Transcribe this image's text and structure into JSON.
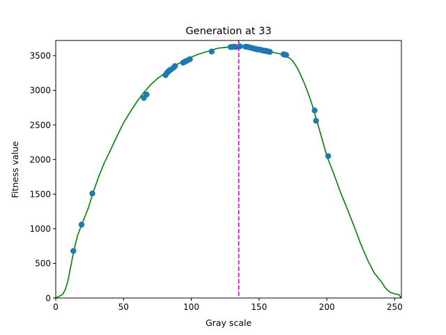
{
  "chart_data": {
    "type": "scatter",
    "title": "Generation at 33",
    "xlabel": "Gray scale",
    "ylabel": "Fitness value",
    "xlim": [
      0,
      255
    ],
    "ylim": [
      0,
      3720
    ],
    "xticks": [
      0,
      50,
      100,
      150,
      200,
      250
    ],
    "yticks": [
      0,
      500,
      1000,
      1500,
      2000,
      2500,
      3000,
      3500
    ],
    "grid": false,
    "legend": "none",
    "colors": {
      "curve": "#008000",
      "points": "#1f77b4",
      "marker_line": "#bf00bf"
    },
    "curve": {
      "x": [
        0,
        5,
        7,
        9,
        11,
        13,
        16,
        20,
        24,
        28,
        32,
        36,
        40,
        45,
        50,
        55,
        60,
        65,
        70,
        75,
        80,
        85,
        90,
        95,
        100,
        105,
        110,
        115,
        120,
        125,
        130,
        135,
        140,
        145,
        150,
        155,
        160,
        165,
        170,
        173,
        175,
        178,
        180,
        183,
        186,
        189,
        192,
        196,
        200,
        205,
        210,
        215,
        220,
        225,
        230,
        235,
        240,
        243,
        245,
        247,
        250,
        253,
        255
      ],
      "y": [
        0,
        50,
        120,
        250,
        450,
        650,
        900,
        1100,
        1300,
        1550,
        1770,
        1960,
        2120,
        2330,
        2530,
        2690,
        2840,
        2970,
        3080,
        3170,
        3240,
        3320,
        3380,
        3430,
        3480,
        3520,
        3550,
        3580,
        3610,
        3620,
        3630,
        3640,
        3630,
        3610,
        3590,
        3570,
        3550,
        3530,
        3490,
        3460,
        3420,
        3330,
        3250,
        3120,
        2970,
        2800,
        2600,
        2330,
        2050,
        1800,
        1530,
        1290,
        1040,
        780,
        550,
        360,
        240,
        150,
        110,
        80,
        60,
        50,
        0
      ]
    },
    "points": {
      "x": [
        13,
        19,
        27,
        65,
        67,
        81,
        82,
        83,
        84,
        85,
        87,
        88,
        94,
        95,
        96,
        98,
        99,
        115,
        129,
        130,
        131,
        132,
        133,
        136,
        140,
        141,
        142,
        143,
        144,
        145,
        146,
        147,
        148,
        149,
        150,
        151,
        152,
        153,
        154,
        155,
        156,
        157,
        158,
        168,
        169,
        170,
        191,
        192,
        201
      ],
      "y": [
        680,
        1060,
        1510,
        2890,
        2940,
        3220,
        3250,
        3270,
        3290,
        3300,
        3330,
        3350,
        3400,
        3410,
        3420,
        3440,
        3450,
        3560,
        3625,
        3625,
        3630,
        3630,
        3625,
        3635,
        3630,
        3630,
        3625,
        3620,
        3615,
        3610,
        3605,
        3600,
        3595,
        3590,
        3590,
        3585,
        3580,
        3575,
        3570,
        3570,
        3565,
        3560,
        3555,
        3520,
        3515,
        3510,
        2710,
        2560,
        2050
      ]
    },
    "vline_x": 135
  }
}
